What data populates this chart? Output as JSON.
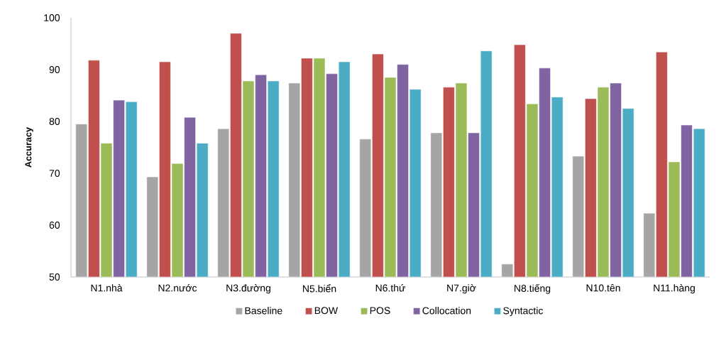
{
  "chart_data": {
    "type": "bar",
    "ylabel": "Accuracy",
    "categories": [
      "N1.nhà",
      "N2.nước",
      "N3.đường",
      "N5.biển",
      "N6.thứ",
      "N7.giờ",
      "N8.tiếng",
      "N10.tên",
      "N11.hàng"
    ],
    "series": [
      {
        "name": "Baseline",
        "color": "#a5a5a5",
        "values": [
          79.5,
          69.3,
          78.6,
          87.4,
          76.6,
          77.8,
          52.5,
          73.3,
          62.3
        ]
      },
      {
        "name": "BOW",
        "color": "#c0504d",
        "values": [
          91.8,
          91.5,
          97.0,
          92.2,
          93.0,
          86.6,
          94.8,
          84.4,
          93.4
        ]
      },
      {
        "name": "POS",
        "color": "#9bbb59",
        "values": [
          75.8,
          71.9,
          87.8,
          92.2,
          88.5,
          87.4,
          83.4,
          86.6,
          72.2
        ]
      },
      {
        "name": "Collocation",
        "color": "#8064a2",
        "values": [
          84.1,
          80.8,
          89.0,
          89.2,
          91.0,
          77.8,
          90.3,
          87.4,
          79.3
        ]
      },
      {
        "name": "Syntactic",
        "color": "#4bacc6",
        "values": [
          83.8,
          75.8,
          87.8,
          91.5,
          86.2,
          93.6,
          84.7,
          82.5,
          78.6
        ]
      }
    ],
    "ylim": [
      50,
      100
    ],
    "yticks": [
      50,
      60,
      70,
      80,
      90,
      100
    ],
    "grid": false,
    "legend": "bottom"
  }
}
